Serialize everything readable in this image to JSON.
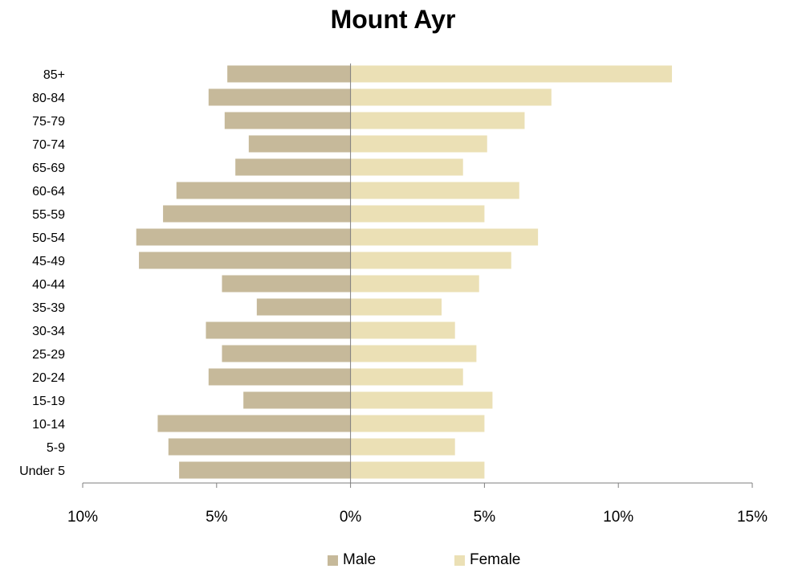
{
  "chart_data": {
    "type": "bar",
    "orientation": "horizontal",
    "title": "Mount Ayr",
    "categories": [
      "85+",
      "80-84",
      "75-79",
      "70-74",
      "65-69",
      "60-64",
      "55-59",
      "50-54",
      "45-49",
      "40-44",
      "35-39",
      "30-34",
      "25-29",
      "20-24",
      "15-19",
      "10-14",
      "5-9",
      "Under 5"
    ],
    "series": [
      {
        "name": "Male",
        "color": "#c6b99a",
        "values": [
          4.6,
          5.3,
          4.7,
          3.8,
          4.3,
          6.5,
          7.0,
          8.0,
          7.9,
          4.8,
          3.5,
          5.4,
          4.8,
          5.3,
          4.0,
          7.2,
          6.8,
          6.4
        ]
      },
      {
        "name": "Female",
        "color": "#ebe0b5",
        "values": [
          12.0,
          7.5,
          6.5,
          5.1,
          4.2,
          6.3,
          5.0,
          7.0,
          6.0,
          4.8,
          3.4,
          3.9,
          4.7,
          4.2,
          5.3,
          5.0,
          3.9,
          5.0
        ]
      }
    ],
    "xlim": [
      -10,
      15
    ],
    "xticks": [
      -10,
      -5,
      0,
      5,
      10,
      15
    ],
    "xtick_labels": [
      "10%",
      "5%",
      "0%",
      "5%",
      "10%",
      "15%"
    ],
    "xlabel": "",
    "ylabel": "",
    "grid": false,
    "legend_position": "bottom"
  }
}
